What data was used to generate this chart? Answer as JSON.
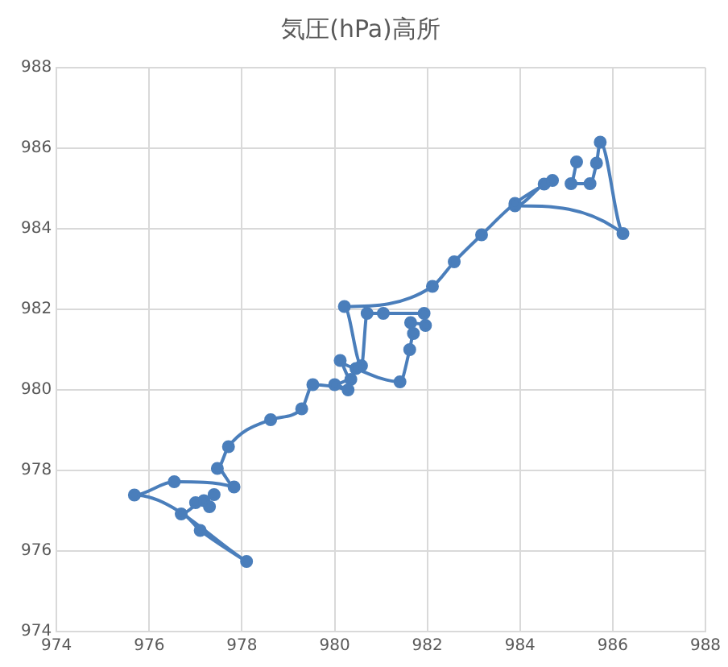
{
  "chart_data": {
    "type": "line",
    "title": "気圧(hPa)高所",
    "marker": "circle",
    "line_style": "solid",
    "grid": true,
    "legend": false,
    "xlim": [
      974,
      988
    ],
    "xticks": [
      974,
      976,
      978,
      980,
      982,
      984,
      986,
      988
    ],
    "ylim": [
      974,
      988
    ],
    "yticks": [
      974,
      976,
      978,
      980,
      982,
      984,
      986,
      988
    ],
    "series": [
      {
        "color": "#4a7ebb",
        "x": [
          985.22,
          985.1,
          985.51,
          985.65,
          985.73,
          986.22,
          983.89,
          984.52,
          984.7,
          983.89,
          983.17,
          982.58,
          982.11,
          980.21,
          980.58,
          980.7,
          981.05,
          981.93,
          981.96,
          981.64,
          981.7,
          981.62,
          981.41,
          980.46,
          980.12,
          980.35,
          980.0,
          980.29,
          979.53,
          979.29,
          978.62,
          977.71,
          977.47,
          977.83,
          976.54,
          975.68,
          978.1,
          977.1,
          976.69,
          977.18,
          977.3,
          977.0,
          977.4
        ],
        "values": [
          985.66,
          985.12,
          985.12,
          985.63,
          986.15,
          983.88,
          984.57,
          985.11,
          985.2,
          984.63,
          983.85,
          983.18,
          982.57,
          982.07,
          980.6,
          981.9,
          981.9,
          981.9,
          981.6,
          981.67,
          981.4,
          981.0,
          980.2,
          980.53,
          980.73,
          980.26,
          980.13,
          980.0,
          980.13,
          979.53,
          979.26,
          978.59,
          978.05,
          977.59,
          977.72,
          977.39,
          975.74,
          976.51,
          976.92,
          977.25,
          977.1,
          977.2,
          977.4
        ]
      }
    ]
  }
}
